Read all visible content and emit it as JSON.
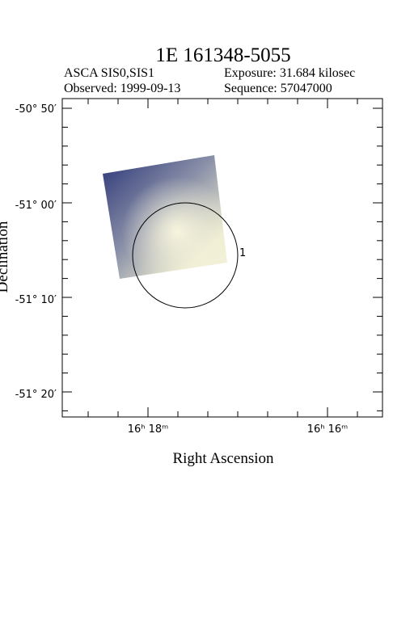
{
  "header": {
    "title": "1E 161348-5055",
    "instrument": "ASCA SIS0,SIS1",
    "exposure": "Exposure: 31.684 kilosec",
    "observed": "Observed: 1999-09-13",
    "sequence": "Sequence: 57047000"
  },
  "plot": {
    "y_axis_label": "Declination",
    "x_axis_label": "Right Ascension",
    "y_tick_labels": [
      "-50° 50′",
      "-51° 00′",
      "-51° 10′",
      "-51° 20′"
    ],
    "x_tick_labels": [
      "16ʰ 18ᵐ",
      "16ʰ 16ᵐ"
    ],
    "source_label": "1"
  }
}
